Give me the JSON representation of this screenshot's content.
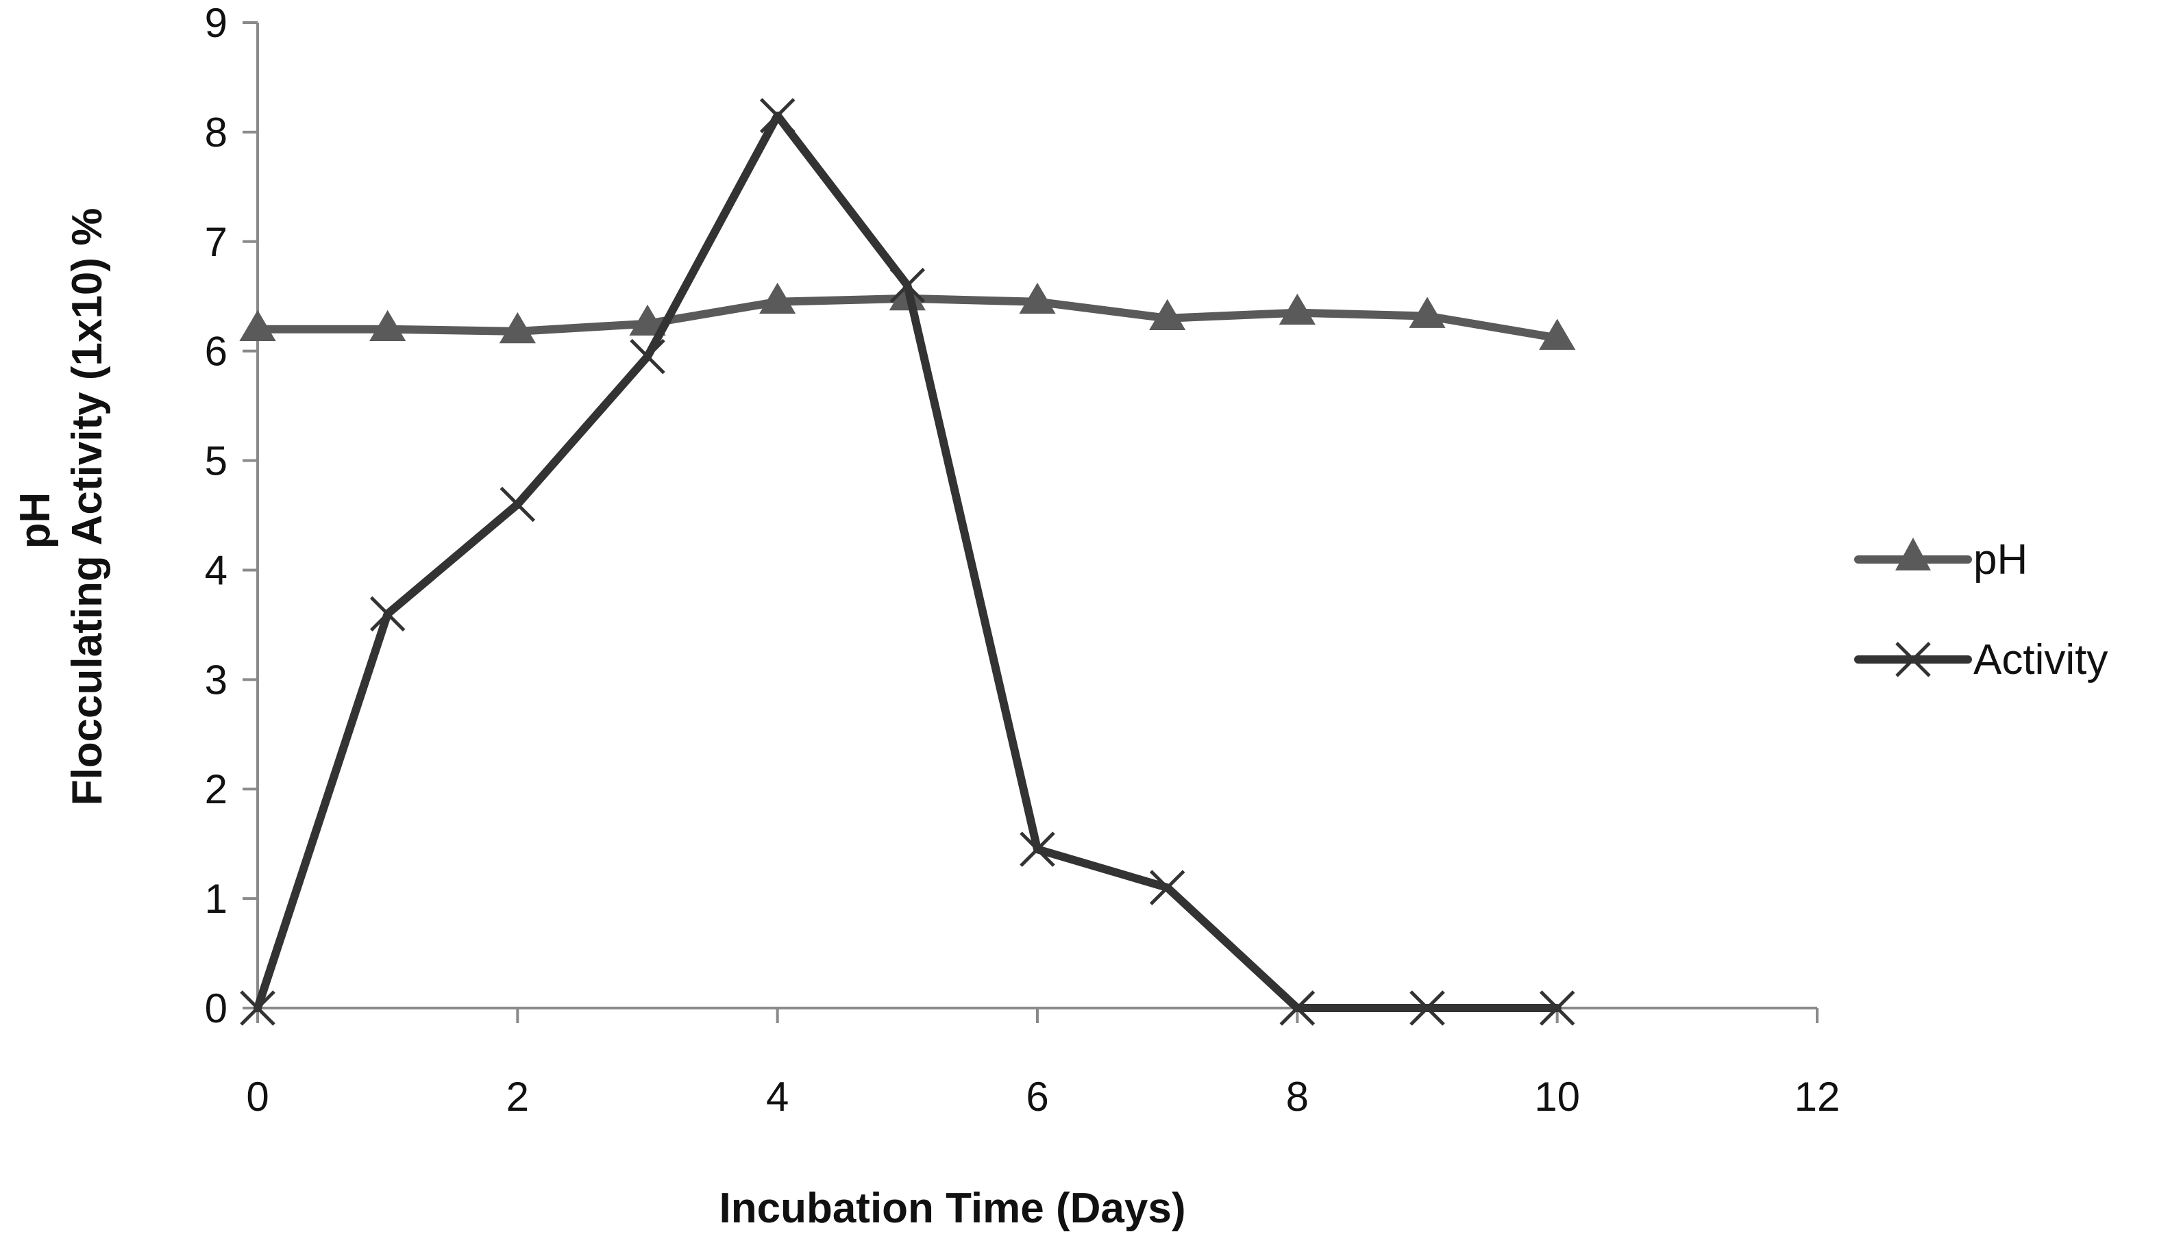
{
  "chart_data": {
    "type": "line",
    "title": "",
    "xlabel": "Incubation Time (Days)",
    "ylabel_lines": [
      "pH",
      "Flocculating Activity (1x10) %"
    ],
    "xlim": [
      0,
      12
    ],
    "ylim": [
      0,
      9
    ],
    "x_ticks": [
      0,
      2,
      4,
      6,
      8,
      10,
      12
    ],
    "x_tick_labels": [
      "0",
      "2",
      "4",
      "6",
      "8",
      "10",
      "12"
    ],
    "y_ticks": [
      0,
      1,
      2,
      3,
      4,
      5,
      6,
      7,
      8,
      9
    ],
    "y_tick_labels": [
      "0",
      "1",
      "2",
      "3",
      "4",
      "5",
      "6",
      "7",
      "8",
      "9"
    ],
    "grid": false,
    "legend_position": "right",
    "series": [
      {
        "name": "pH",
        "marker": "triangle",
        "color": "#5a5a5a",
        "x": [
          0,
          1,
          2,
          3,
          4,
          5,
          6,
          7,
          8,
          9,
          10
        ],
        "values": [
          6.2,
          6.2,
          6.18,
          6.25,
          6.45,
          6.48,
          6.45,
          6.3,
          6.35,
          6.32,
          6.12
        ]
      },
      {
        "name": "Activity",
        "marker": "x",
        "color": "#333333",
        "x": [
          0,
          1,
          2,
          3,
          4,
          5,
          6,
          7,
          8,
          9,
          10
        ],
        "values": [
          0,
          3.6,
          4.6,
          5.95,
          8.15,
          6.6,
          1.45,
          1.1,
          0,
          0,
          0
        ]
      }
    ]
  }
}
